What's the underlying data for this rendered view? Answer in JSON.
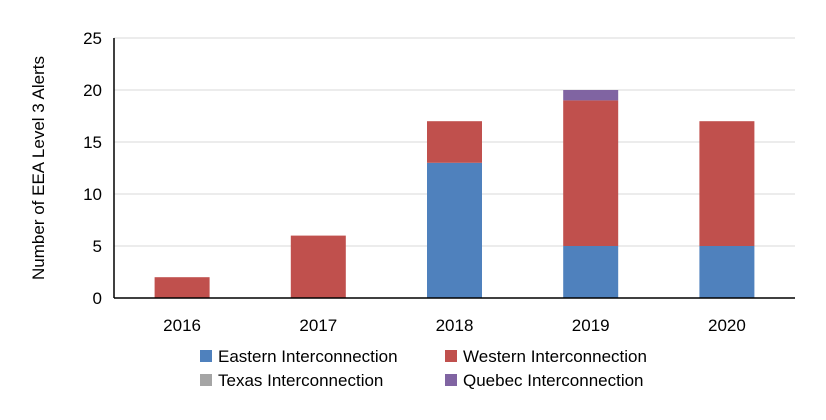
{
  "chart_data": {
    "type": "bar",
    "stacked": true,
    "categories": [
      "2016",
      "2017",
      "2018",
      "2019",
      "2020"
    ],
    "series": [
      {
        "name": "Eastern Interconnection",
        "color": "#4f81bd",
        "values": [
          0,
          0,
          13,
          5,
          5
        ]
      },
      {
        "name": "Western Interconnection",
        "color": "#c0504d",
        "values": [
          2,
          6,
          4,
          14,
          12
        ]
      },
      {
        "name": "Texas Interconnection",
        "color": "#a5a5a5",
        "values": [
          0,
          0,
          0,
          0,
          0
        ]
      },
      {
        "name": "Quebec Interconnection",
        "color": "#8064a2",
        "values": [
          0,
          0,
          0,
          1,
          0
        ]
      }
    ],
    "title": "",
    "xlabel": "",
    "ylabel": "Number of EEA Level 3 Alerts",
    "ylim": [
      0,
      25
    ],
    "yticks": [
      "0",
      "5",
      "10",
      "15",
      "20",
      "25"
    ],
    "grid": true,
    "legend_position": "bottom"
  }
}
